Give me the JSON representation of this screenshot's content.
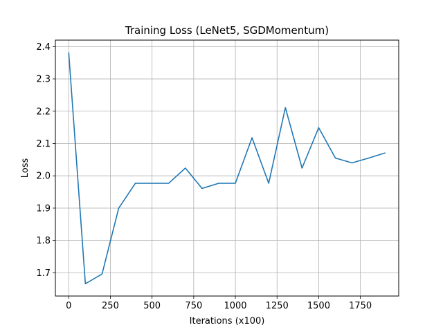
{
  "chart_data": {
    "type": "line",
    "title": "Training Loss (LeNet5, SGDMomentum)",
    "xlabel": "Iterations (x100)",
    "ylabel": "Loss",
    "xlim": [
      -80,
      1980
    ],
    "ylim": [
      1.628,
      2.42
    ],
    "xticks": [
      0,
      250,
      500,
      750,
      1000,
      1250,
      1500,
      1750
    ],
    "yticks": [
      1.7,
      1.8,
      1.9,
      2.0,
      2.1,
      2.2,
      2.3,
      2.4
    ],
    "grid": true,
    "series": [
      {
        "color": "#1f77b4",
        "x": [
          0,
          100,
          200,
          300,
          400,
          500,
          600,
          700,
          800,
          900,
          1000,
          1100,
          1200,
          1300,
          1400,
          1500,
          1600,
          1700,
          1800,
          1900
        ],
        "y": [
          2.382,
          1.666,
          1.696,
          1.9,
          1.977,
          1.977,
          1.977,
          2.024,
          1.961,
          1.977,
          1.977,
          2.118,
          1.977,
          2.211,
          2.024,
          2.149,
          2.055,
          2.04,
          2.055,
          2.071
        ]
      }
    ]
  }
}
